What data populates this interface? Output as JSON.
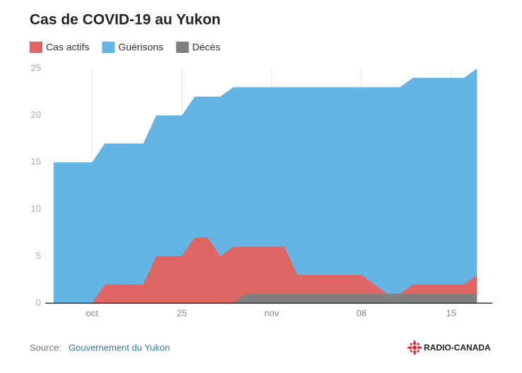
{
  "chart_data": {
    "type": "area",
    "title": "Cas de COVID-19 au Yukon",
    "x": [
      0,
      1,
      2,
      3,
      4,
      5,
      6,
      7,
      8,
      9,
      10,
      11,
      12,
      13,
      14,
      15,
      16,
      17,
      18,
      19,
      20,
      21,
      22,
      23,
      24,
      25,
      26,
      27,
      28,
      29,
      30,
      31,
      32,
      33
    ],
    "series": [
      {
        "name": "Guérisons",
        "color": "#64b5e3",
        "values": [
          15,
          15,
          15,
          15,
          17,
          17,
          17,
          17,
          20,
          20,
          20,
          22,
          22,
          22,
          23,
          23,
          23,
          23,
          23,
          23,
          23,
          23,
          23,
          23,
          23,
          23,
          23,
          23,
          24,
          24,
          24,
          24,
          24,
          25
        ]
      },
      {
        "name": "Cas actifs",
        "color": "#e06666",
        "values": [
          0,
          0,
          0,
          0,
          2,
          2,
          2,
          2,
          5,
          5,
          5,
          7,
          7,
          5,
          6,
          6,
          6,
          6,
          6,
          3,
          3,
          3,
          3,
          3,
          3,
          2,
          1,
          1,
          2,
          2,
          2,
          2,
          2,
          3
        ]
      },
      {
        "name": "Décès",
        "color": "#808080",
        "values": [
          0,
          0,
          0,
          0,
          0,
          0,
          0,
          0,
          0,
          0,
          0,
          0,
          0,
          0,
          0,
          1,
          1,
          1,
          1,
          1,
          1,
          1,
          1,
          1,
          1,
          1,
          1,
          1,
          1,
          1,
          1,
          1,
          1,
          1
        ]
      }
    ],
    "legend_order": [
      "Cas actifs",
      "Guérisons",
      "Décès"
    ],
    "xlim": [
      -0.65,
      34.2
    ],
    "xticks": [
      {
        "value": 3,
        "label": "oct"
      },
      {
        "value": 10,
        "label": "25"
      },
      {
        "value": 17,
        "label": "nov"
      },
      {
        "value": 24,
        "label": "08"
      },
      {
        "value": 31,
        "label": "15"
      }
    ],
    "ylim": [
      0,
      25
    ],
    "yticks": [
      0,
      5,
      10,
      15,
      20,
      25
    ],
    "grid": true,
    "source_label": "Source:",
    "source": "Gouvernement du Yukon",
    "brand": "RADIO-CANADA"
  }
}
